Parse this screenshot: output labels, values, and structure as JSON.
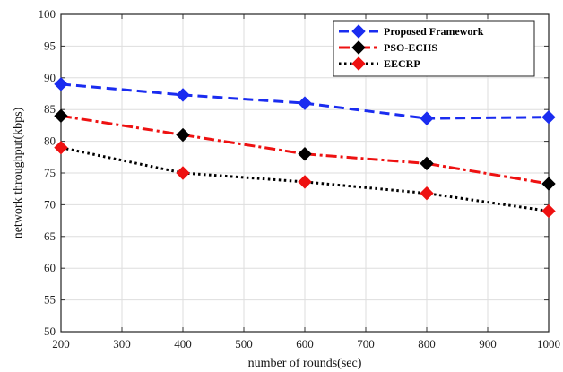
{
  "chart_data": {
    "type": "line",
    "xlabel": "number of rounds(sec)",
    "ylabel": "network throughput(kbps)",
    "xlim": [
      200,
      1000
    ],
    "ylim": [
      50,
      100
    ],
    "xticks": [
      "200",
      "300",
      "400",
      "500",
      "600",
      "700",
      "800",
      "900",
      "1000"
    ],
    "yticks": [
      "50",
      "55",
      "60",
      "65",
      "70",
      "75",
      "80",
      "85",
      "90",
      "95",
      "100"
    ],
    "grid": true,
    "legend_position": "top-right",
    "x": [
      200,
      400,
      600,
      800,
      1000
    ],
    "series": [
      {
        "name": "Proposed Framework",
        "values": [
          89,
          87.3,
          86,
          83.6,
          83.8
        ],
        "color": "#1a2cf0",
        "marker_color": "#1a2cf0",
        "line_style": "dashed"
      },
      {
        "name": "PSO-ECHS",
        "values": [
          84,
          81,
          78,
          76.5,
          73.3
        ],
        "color": "#ee1111",
        "marker_color": "#000000",
        "line_style": "dashdot"
      },
      {
        "name": "EECRP",
        "values": [
          79,
          75,
          73.6,
          71.8,
          69
        ],
        "color": "#000000",
        "marker_color": "#ee1111",
        "line_style": "dotted"
      }
    ]
  }
}
